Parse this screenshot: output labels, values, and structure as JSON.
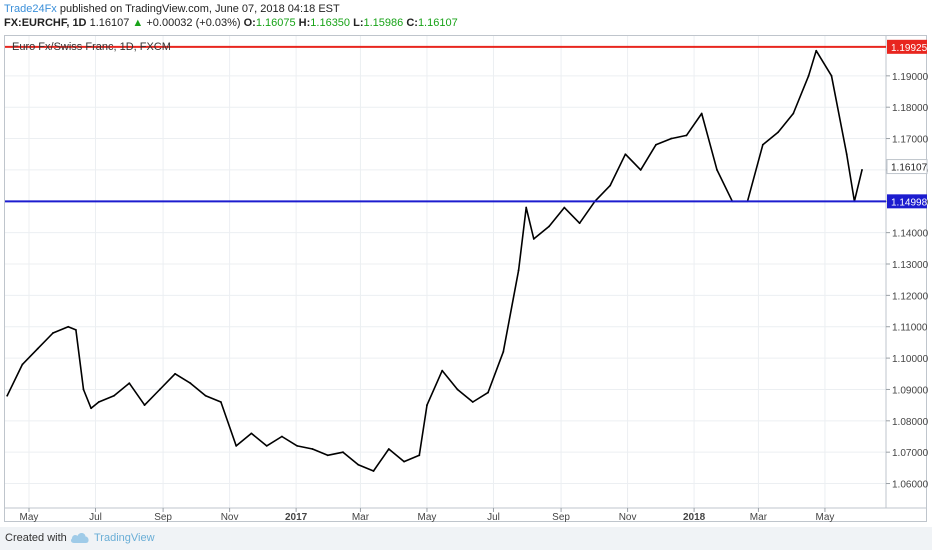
{
  "header": {
    "author": "Trade24Fx",
    "published_text": " published on TradingView.com, June 07, 2018 04:18 EST",
    "symbol": "FX:EURCHF, 1D",
    "last": "1.16107",
    "change_arrow": "▲",
    "change": "+0.00032 (+0.03%)",
    "o_label": "O:",
    "o_value": "1.16075",
    "h_label": "H:",
    "h_value": "1.16350",
    "l_label": "L:",
    "l_value": "1.15986",
    "c_label": "C:",
    "c_value": "1.16107"
  },
  "footer": {
    "created_with": "Created with",
    "brand": "TradingView"
  },
  "colors": {
    "up": "#18a318",
    "resistance": "#e8261f",
    "support": "#1c1ccf",
    "candle": "#000000",
    "grid": "#eceff2"
  },
  "chart_data": {
    "type": "line",
    "title": "Euro Fx/Swiss Franc, 1D, FXCM",
    "ylim": [
      1.0522,
      1.2027
    ],
    "y_ticks": [
      1.06,
      1.07,
      1.08,
      1.09,
      1.1,
      1.11,
      1.12,
      1.13,
      1.14,
      1.15,
      1.16,
      1.17,
      1.18,
      1.19
    ],
    "y_tick_labels": [
      "1.06000",
      "1.07000",
      "1.08000",
      "1.09000",
      "1.10000",
      "1.11000",
      "1.12000",
      "1.13000",
      "1.14000",
      "1.15000",
      "1.16000",
      "1.17000",
      "1.18000",
      "1.19000"
    ],
    "x_range": [
      "2016-04-09",
      "2018-06-26"
    ],
    "x_ticks": [
      {
        "date": "2016-05-01",
        "label": "May",
        "bold": false
      },
      {
        "date": "2016-07-01",
        "label": "Jul",
        "bold": false
      },
      {
        "date": "2016-09-01",
        "label": "Sep",
        "bold": false
      },
      {
        "date": "2016-11-01",
        "label": "Nov",
        "bold": false
      },
      {
        "date": "2017-01-01",
        "label": "2017",
        "bold": true
      },
      {
        "date": "2017-03-01",
        "label": "Mar",
        "bold": false
      },
      {
        "date": "2017-05-01",
        "label": "May",
        "bold": false
      },
      {
        "date": "2017-07-01",
        "label": "Jul",
        "bold": false
      },
      {
        "date": "2017-09-01",
        "label": "Sep",
        "bold": false
      },
      {
        "date": "2017-11-01",
        "label": "Nov",
        "bold": false
      },
      {
        "date": "2018-01-01",
        "label": "2018",
        "bold": true
      },
      {
        "date": "2018-03-01",
        "label": "Mar",
        "bold": false
      },
      {
        "date": "2018-05-01",
        "label": "May",
        "bold": false
      }
    ],
    "horizontal_lines": [
      {
        "value": 1.19925,
        "label": "1.19925",
        "color": "#e8261f"
      },
      {
        "value": 1.14998,
        "label": "1.14998",
        "color": "#1c1ccf"
      }
    ],
    "last_price": {
      "value": 1.16107,
      "label": "1.16107"
    },
    "series": [
      {
        "x": [
          "2016-04-11",
          "2016-04-25",
          "2016-05-09",
          "2016-05-23",
          "2016-06-06",
          "2016-06-13",
          "2016-06-20",
          "2016-06-27",
          "2016-07-04",
          "2016-07-18",
          "2016-08-01",
          "2016-08-15",
          "2016-08-29",
          "2016-09-12",
          "2016-09-26",
          "2016-10-10",
          "2016-10-24",
          "2016-11-07",
          "2016-11-21",
          "2016-12-05",
          "2016-12-19",
          "2017-01-02",
          "2017-01-16",
          "2017-01-30",
          "2017-02-13",
          "2017-02-27",
          "2017-03-13",
          "2017-03-27",
          "2017-04-10",
          "2017-04-24",
          "2017-05-01",
          "2017-05-15",
          "2017-05-29",
          "2017-06-12",
          "2017-06-26",
          "2017-07-10",
          "2017-07-24",
          "2017-07-31",
          "2017-08-07",
          "2017-08-21",
          "2017-09-04",
          "2017-09-18",
          "2017-10-02",
          "2017-10-16",
          "2017-10-30",
          "2017-11-13",
          "2017-11-27",
          "2017-12-11",
          "2017-12-25",
          "2018-01-08",
          "2018-01-22",
          "2018-02-05",
          "2018-02-19",
          "2018-03-05",
          "2018-03-19",
          "2018-04-02",
          "2018-04-16",
          "2018-04-23",
          "2018-05-07",
          "2018-05-21",
          "2018-05-28",
          "2018-06-04"
        ],
        "values": [
          1.088,
          1.098,
          1.103,
          1.108,
          1.11,
          1.109,
          1.09,
          1.084,
          1.086,
          1.088,
          1.092,
          1.085,
          1.09,
          1.095,
          1.092,
          1.088,
          1.086,
          1.072,
          1.076,
          1.072,
          1.075,
          1.072,
          1.071,
          1.069,
          1.07,
          1.066,
          1.064,
          1.071,
          1.067,
          1.069,
          1.085,
          1.096,
          1.09,
          1.086,
          1.089,
          1.102,
          1.128,
          1.148,
          1.138,
          1.142,
          1.148,
          1.143,
          1.15,
          1.155,
          1.165,
          1.16,
          1.168,
          1.17,
          1.171,
          1.178,
          1.16,
          1.15,
          1.15,
          1.168,
          1.172,
          1.178,
          1.19,
          1.198,
          1.19,
          1.165,
          1.15,
          1.16
        ]
      }
    ]
  }
}
